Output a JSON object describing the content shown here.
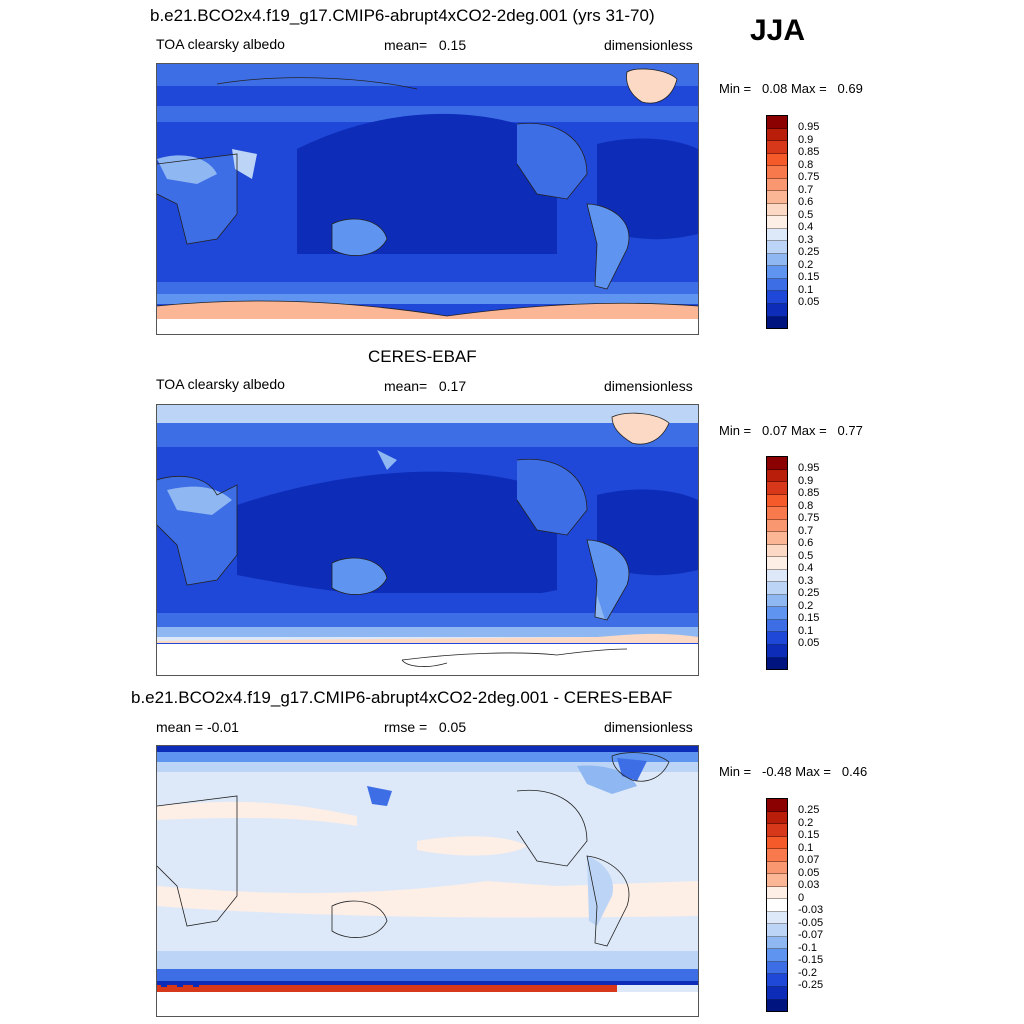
{
  "season": "JJA",
  "panels": [
    {
      "title": "b.e21.BCO2x4.f19_g17.CMIP6-abrupt4xCO2-2deg.001 (yrs 31-70)",
      "left": "TOA clearsky albedo",
      "center_label": "mean=",
      "center_value": "0.15",
      "right": "dimensionless",
      "min_label": "Min =",
      "min_value": "0.08",
      "max_label": "Max =",
      "max_value": "0.69",
      "colorbar_ticks": [
        "0.95",
        "0.9",
        "0.85",
        "0.8",
        "0.75",
        "0.7",
        "0.6",
        "0.5",
        "0.4",
        "0.3",
        "0.25",
        "0.2",
        "0.15",
        "0.1",
        "0.05"
      ],
      "colorbar_colors": [
        "#8b0000",
        "#b81e0a",
        "#d8381a",
        "#f45a2a",
        "#f7794c",
        "#f99870",
        "#fbb696",
        "#fcd9c4",
        "#fdeee6",
        "#dde9f9",
        "#bcd5f6",
        "#8fb7f2",
        "#5f95f0",
        "#3e6ee6",
        "#1f47d8",
        "#0d2cb8",
        "#00147f"
      ],
      "mean_value": 0.15
    },
    {
      "title": "CERES-EBAF",
      "left": "TOA clearsky albedo",
      "center_label": "mean=",
      "center_value": "0.17",
      "right": "dimensionless",
      "min_label": "Min =",
      "min_value": "0.07",
      "max_label": "Max =",
      "max_value": "0.77",
      "colorbar_ticks": [
        "0.95",
        "0.9",
        "0.85",
        "0.8",
        "0.75",
        "0.7",
        "0.6",
        "0.5",
        "0.4",
        "0.3",
        "0.25",
        "0.2",
        "0.15",
        "0.1",
        "0.05"
      ],
      "colorbar_colors": [
        "#8b0000",
        "#b81e0a",
        "#d8381a",
        "#f45a2a",
        "#f7794c",
        "#f99870",
        "#fbb696",
        "#fcd9c4",
        "#fdeee6",
        "#dde9f9",
        "#bcd5f6",
        "#8fb7f2",
        "#5f95f0",
        "#3e6ee6",
        "#1f47d8",
        "#0d2cb8",
        "#00147f"
      ],
      "mean_value": 0.17
    },
    {
      "title": "b.e21.BCO2x4.f19_g17.CMIP6-abrupt4xCO2-2deg.001 - CERES-EBAF",
      "left": "mean =  -0.01",
      "center_label": "rmse =",
      "center_value": "0.05",
      "right": "dimensionless",
      "min_label": "Min =",
      "min_value": "-0.48",
      "max_label": "Max =",
      "max_value": "0.46",
      "colorbar_ticks": [
        "0.25",
        "0.2",
        "0.15",
        "0.1",
        "0.07",
        "0.05",
        "0.03",
        "0",
        "-0.03",
        "-0.05",
        "-0.07",
        "-0.1",
        "-0.15",
        "-0.2",
        "-0.25"
      ],
      "colorbar_colors": [
        "#8b0000",
        "#b81e0a",
        "#d8381a",
        "#f45a2a",
        "#f7794c",
        "#f99870",
        "#fbb696",
        "#fdeee6",
        "#ffffff",
        "#dde9f9",
        "#bcd5f6",
        "#8fb7f2",
        "#5f95f0",
        "#3e6ee6",
        "#1f47d8",
        "#0d2cb8",
        "#00147f"
      ],
      "mean_value": -0.01
    }
  ]
}
